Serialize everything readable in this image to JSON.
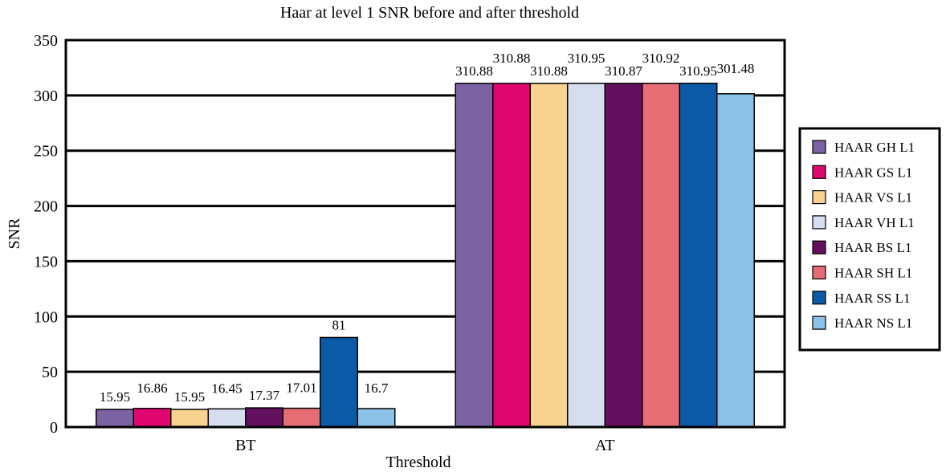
{
  "chart_data": {
    "type": "bar",
    "title": "Haar at level 1 SNR before and after threshold",
    "xlabel": "Threshold",
    "ylabel": "SNR",
    "ylim": [
      0,
      350
    ],
    "yticks": [
      0,
      50,
      100,
      150,
      200,
      250,
      300,
      350
    ],
    "grid": true,
    "legend_position": "right",
    "categories": [
      "BT",
      "AT"
    ],
    "series": [
      {
        "name": "HAAR GH L1",
        "color": "#7b62a3",
        "values": [
          15.95,
          310.88
        ],
        "labels": [
          "15.95",
          "310.88"
        ]
      },
      {
        "name": "HAAR GS L1",
        "color": "#e0066f",
        "values": [
          16.86,
          310.88
        ],
        "labels": [
          "16.86",
          "310.88"
        ]
      },
      {
        "name": "HAAR VS L1",
        "color": "#f8d38f",
        "values": [
          15.95,
          310.88
        ],
        "labels": [
          "15.95",
          "310.88"
        ]
      },
      {
        "name": "HAAR VH L1",
        "color": "#d5ddef",
        "values": [
          16.45,
          310.95
        ],
        "labels": [
          "16.45",
          "310.95"
        ]
      },
      {
        "name": "HAAR BS L1",
        "color": "#63115e",
        "values": [
          17.37,
          310.87
        ],
        "labels": [
          "17.37",
          "310.87"
        ]
      },
      {
        "name": "HAAR SH L1",
        "color": "#e76d75",
        "values": [
          17.01,
          310.92
        ],
        "labels": [
          "17.01",
          "310.92"
        ]
      },
      {
        "name": "HAAR SS L1",
        "color": "#0b5aa6",
        "values": [
          81,
          310.95
        ],
        "labels": [
          "81",
          "310.95"
        ]
      },
      {
        "name": "HAAR NS L1",
        "color": "#8cc2e6",
        "values": [
          16.7,
          301.48
        ],
        "labels": [
          "16.7",
          "301.48"
        ]
      }
    ]
  }
}
